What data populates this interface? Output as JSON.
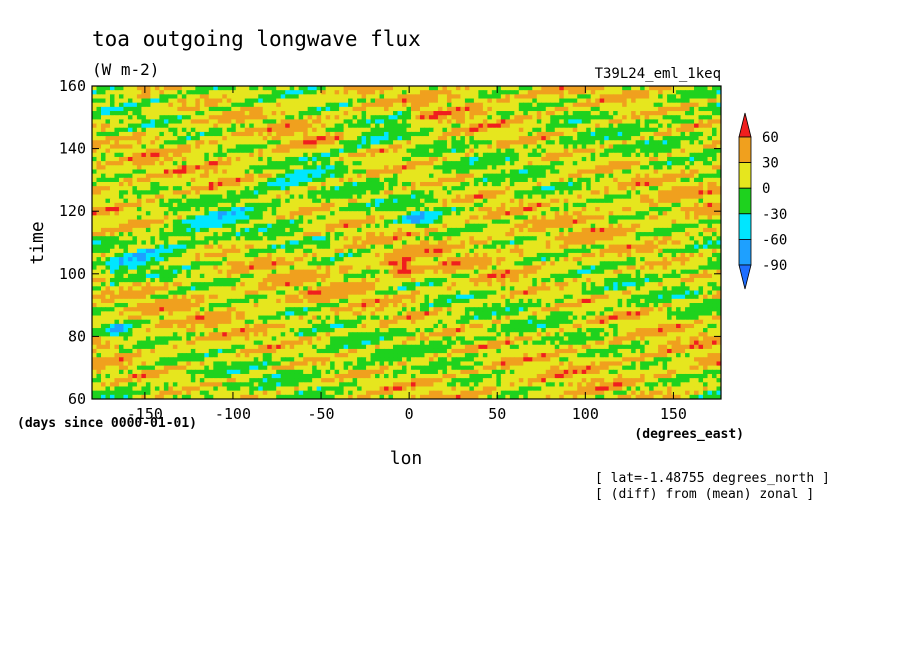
{
  "chart_data": {
    "type": "heatmap",
    "title": "toa outgoing longwave flux",
    "units": "(W m-2)",
    "run_label": "T39L24_eml_1keq",
    "xlabel": "lon",
    "x_units": "(degrees_east)",
    "ylabel": "time",
    "y_units": "(days since 0000-01-01)",
    "xlim": [
      -180,
      177
    ],
    "ylim": [
      60,
      160
    ],
    "xticks": [
      {
        "value": -150,
        "label": "-150"
      },
      {
        "value": -100,
        "label": "-100"
      },
      {
        "value": -50,
        "label": "-50"
      },
      {
        "value": 0,
        "label": "0"
      },
      {
        "value": 50,
        "label": "50"
      },
      {
        "value": 100,
        "label": "100"
      },
      {
        "value": 150,
        "label": "150"
      }
    ],
    "yticks": [
      {
        "value": 60,
        "label": "60"
      },
      {
        "value": 80,
        "label": "80"
      },
      {
        "value": 100,
        "label": "100"
      },
      {
        "value": 120,
        "label": "120"
      },
      {
        "value": 140,
        "label": "140"
      },
      {
        "value": 160,
        "label": "160"
      }
    ],
    "colorbar": {
      "labels": [
        "60",
        "30",
        "0",
        "-30",
        "-60",
        "-90"
      ],
      "levels": [
        -90,
        -60,
        -30,
        0,
        30,
        60
      ],
      "colors": [
        "#1e6eff",
        "#1ea0ff",
        "#00e6ff",
        "#1ed21e",
        "#e6e61e",
        "#f0a01e",
        "#f01e1e"
      ]
    },
    "annotations": [
      "[ lat=-1.48755 degrees_north ]",
      "[ (diff) from (mean) zonal ]"
    ],
    "field_features": [
      {
        "feature": "eastward-propagating negative anomaly band",
        "lon_start": -170,
        "time_start": 100,
        "lon_end": 0,
        "time_end": 150
      },
      {
        "feature": "positive anomaly maximum",
        "lon": -5,
        "time": 102
      },
      {
        "feature": "negative anomaly cluster",
        "lon": 5,
        "time": 118
      },
      {
        "feature": "negative anomaly cluster",
        "lon": -165,
        "time": 82
      }
    ]
  }
}
